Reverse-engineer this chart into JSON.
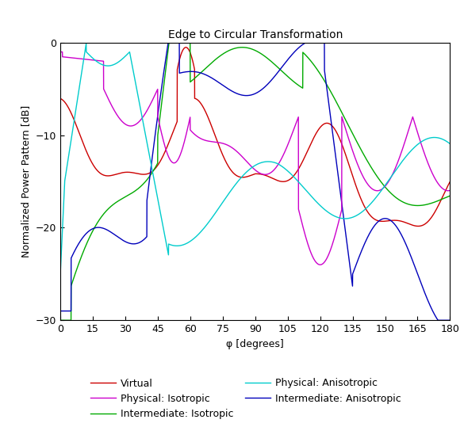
{
  "title": "Edge to Circular Transformation",
  "xlabel": "φ [degrees]",
  "ylabel": "Normalized Power Pattern [dB]",
  "xlim": [
    0,
    180
  ],
  "ylim": [
    -30,
    0
  ],
  "xticks": [
    0,
    15,
    30,
    45,
    60,
    75,
    90,
    105,
    120,
    135,
    150,
    165,
    180
  ],
  "yticks": [
    0,
    -10,
    -20,
    -30
  ],
  "legend_labels": [
    "Virtual",
    "Intermediate: Isotropic",
    "Physical: Isotropic",
    "Physical: Anisotropic"
  ],
  "legend_colors_display": [
    "#cc0000",
    "#00aa00",
    "#cc00cc",
    "#00cccc"
  ],
  "curve_colors": {
    "virtual": "#cc0000",
    "inter_iso": "#00aa00",
    "inter_aniso": "#0000bb",
    "phys_iso": "#cc00cc",
    "phys_aniso": "#00cccc"
  },
  "background_color": "#ffffff",
  "title_fontsize": 10,
  "axis_fontsize": 9,
  "tick_fontsize": 9,
  "legend_fontsize": 9,
  "linewidth": 1.0
}
